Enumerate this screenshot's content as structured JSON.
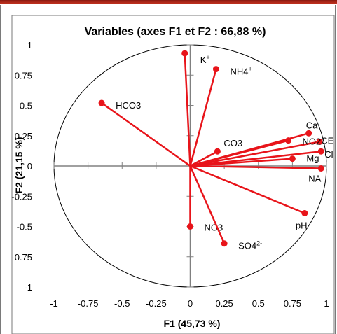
{
  "chart_data": {
    "type": "scatter",
    "title": "Variables (axes F1 et F2 : 66,88 %)",
    "xlabel": "F1 (45,73 %)",
    "ylabel": "F2 (21,15 %)",
    "xlim": [
      -1,
      1
    ],
    "ylim": [
      -1,
      1
    ],
    "x_ticks": [
      "-1",
      "-0.75",
      "-0.5",
      "-0.25",
      "0",
      "0.25",
      "0.5",
      "0.75",
      "1"
    ],
    "y_ticks": [
      "1",
      "0.75",
      "0.5",
      "0.25",
      "0",
      "-0.25",
      "-0.5",
      "-0.75",
      "-1"
    ],
    "unit_circle": true,
    "line_color": "#e8141a",
    "variables": [
      {
        "label": "K",
        "sup": "+",
        "x": -0.04,
        "y": 0.93
      },
      {
        "label": "NH4",
        "sup": "+",
        "x": 0.19,
        "y": 0.8
      },
      {
        "label": "HCO3",
        "sup": "",
        "x": -0.65,
        "y": 0.52
      },
      {
        "label": "Ca",
        "sup": "",
        "x": 0.87,
        "y": 0.27
      },
      {
        "label": "CE",
        "sup": "",
        "x": 0.95,
        "y": 0.2
      },
      {
        "label": "NO2",
        "sup": "",
        "x": 0.72,
        "y": 0.21
      },
      {
        "label": "Cl",
        "sup": "",
        "x": 0.96,
        "y": 0.12
      },
      {
        "label": "Mg",
        "sup": "",
        "x": 0.75,
        "y": 0.06
      },
      {
        "label": "NA",
        "sup": "",
        "x": 0.96,
        "y": -0.02
      },
      {
        "label": "CO3",
        "sup": "",
        "x": 0.2,
        "y": 0.12
      },
      {
        "label": "pH",
        "sup": "",
        "x": 0.84,
        "y": -0.39
      },
      {
        "label": "NO3",
        "sup": "",
        "x": 0.0,
        "y": -0.5
      },
      {
        "label": "SO4",
        "sup": "2-",
        "x": 0.25,
        "y": -0.64
      }
    ]
  }
}
